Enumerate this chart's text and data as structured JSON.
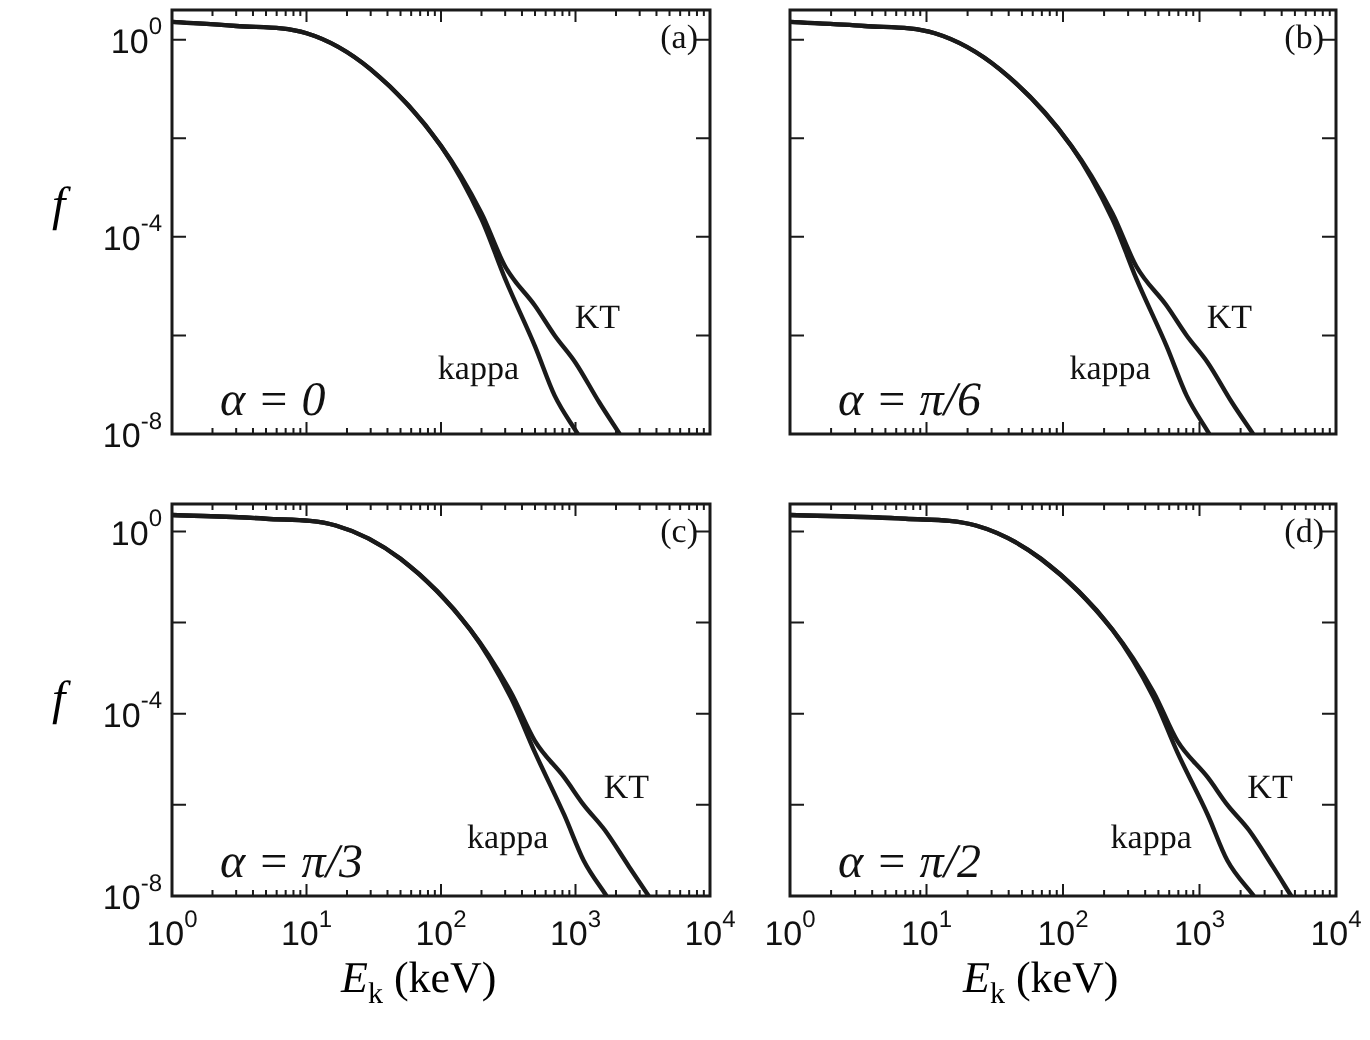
{
  "chart_data": [
    {
      "type": "line",
      "ylabel": "f",
      "annotations": [
        "(a)",
        "α = 0"
      ],
      "log": "xy",
      "xlim": [
        1,
        10000
      ],
      "ylim": [
        1e-08,
        4
      ],
      "tick_labels": "y",
      "xticks": [
        {
          "value": 1,
          "label": null
        },
        {
          "value": 2,
          "label": null
        },
        {
          "value": 3,
          "label": null
        },
        {
          "value": 4,
          "label": null
        },
        {
          "value": 5,
          "label": null
        },
        {
          "value": 6,
          "label": null
        },
        {
          "value": 7,
          "label": null
        },
        {
          "value": 8,
          "label": null
        },
        {
          "value": 9,
          "label": null
        },
        {
          "value": 10,
          "label": null
        },
        {
          "value": 20,
          "label": null
        },
        {
          "value": 30,
          "label": null
        },
        {
          "value": 40,
          "label": null
        },
        {
          "value": 50,
          "label": null
        },
        {
          "value": 60,
          "label": null
        },
        {
          "value": 70,
          "label": null
        },
        {
          "value": 80,
          "label": null
        },
        {
          "value": 90,
          "label": null
        },
        {
          "value": 100,
          "label": null
        },
        {
          "value": 200,
          "label": null
        },
        {
          "value": 300,
          "label": null
        },
        {
          "value": 400,
          "label": null
        },
        {
          "value": 500,
          "label": null
        },
        {
          "value": 600,
          "label": null
        },
        {
          "value": 700,
          "label": null
        },
        {
          "value": 800,
          "label": null
        },
        {
          "value": 900,
          "label": null
        },
        {
          "value": 1000,
          "label": null
        },
        {
          "value": 2000,
          "label": null
        },
        {
          "value": 3000,
          "label": null
        },
        {
          "value": 4000,
          "label": null
        },
        {
          "value": 5000,
          "label": null
        },
        {
          "value": 6000,
          "label": null
        },
        {
          "value": 7000,
          "label": null
        },
        {
          "value": 8000,
          "label": null
        },
        {
          "value": 9000,
          "label": null
        },
        {
          "value": 10000,
          "label": null
        }
      ],
      "yticks": [
        {
          "value": 1,
          "label": "10$^{0}$"
        },
        {
          "value": 0.01,
          "label": null
        },
        {
          "value": 0.0001,
          "label": "10$^{-4}$"
        },
        {
          "value": 1e-06,
          "label": null
        },
        {
          "value": 1e-08,
          "label": "10$^{-8}$"
        }
      ],
      "series": [
        {
          "name": "kappa",
          "color": "#1a1a1a",
          "x": [
            1,
            3,
            10,
            30,
            100,
            200,
            300,
            500,
            700,
            1040
          ],
          "values": [
            2.3,
            1.9,
            1.35,
            0.25,
            0.007,
            0.00023,
            1.4e-05,
            6e-07,
            6e-08,
            1e-08
          ]
        },
        {
          "name": "KT",
          "color": "#1a1a1a",
          "x": [
            1,
            3,
            10,
            30,
            100,
            200,
            300,
            500,
            700,
            1000,
            1500,
            2130
          ],
          "values": [
            2.3,
            1.9,
            1.35,
            0.25,
            0.007,
            0.0003,
            2.5e-05,
            4e-06,
            1e-06,
            2.8e-07,
            4.4e-08,
            1e-08
          ]
        }
      ]
    },
    {
      "type": "line",
      "annotations": [
        "(b)",
        "α = π/6"
      ],
      "log": "xy",
      "xlim": [
        1,
        10000
      ],
      "ylim": [
        1e-08,
        4
      ],
      "tick_labels": false,
      "xticks": [
        {
          "value": 1,
          "label": null
        },
        {
          "value": 2,
          "label": null
        },
        {
          "value": 3,
          "label": null
        },
        {
          "value": 4,
          "label": null
        },
        {
          "value": 5,
          "label": null
        },
        {
          "value": 6,
          "label": null
        },
        {
          "value": 7,
          "label": null
        },
        {
          "value": 8,
          "label": null
        },
        {
          "value": 9,
          "label": null
        },
        {
          "value": 10,
          "label": null
        },
        {
          "value": 20,
          "label": null
        },
        {
          "value": 30,
          "label": null
        },
        {
          "value": 40,
          "label": null
        },
        {
          "value": 50,
          "label": null
        },
        {
          "value": 60,
          "label": null
        },
        {
          "value": 70,
          "label": null
        },
        {
          "value": 80,
          "label": null
        },
        {
          "value": 90,
          "label": null
        },
        {
          "value": 100,
          "label": null
        },
        {
          "value": 200,
          "label": null
        },
        {
          "value": 300,
          "label": null
        },
        {
          "value": 400,
          "label": null
        },
        {
          "value": 500,
          "label": null
        },
        {
          "value": 600,
          "label": null
        },
        {
          "value": 700,
          "label": null
        },
        {
          "value": 800,
          "label": null
        },
        {
          "value": 900,
          "label": null
        },
        {
          "value": 1000,
          "label": null
        },
        {
          "value": 2000,
          "label": null
        },
        {
          "value": 3000,
          "label": null
        },
        {
          "value": 4000,
          "label": null
        },
        {
          "value": 5000,
          "label": null
        },
        {
          "value": 6000,
          "label": null
        },
        {
          "value": 7000,
          "label": null
        },
        {
          "value": 8000,
          "label": null
        },
        {
          "value": 9000,
          "label": null
        },
        {
          "value": 10000,
          "label": null
        }
      ],
      "yticks": [
        {
          "value": 1,
          "label": null
        },
        {
          "value": 0.01,
          "label": null
        },
        {
          "value": 0.0001,
          "label": null
        },
        {
          "value": 1e-06,
          "label": null
        },
        {
          "value": 1e-08,
          "label": null
        }
      ],
      "series": [
        {
          "name": "kappa",
          "color": "#1a1a1a",
          "x": [
            1,
            3.5,
            11.5,
            34.5,
            115,
            230,
            345,
            575,
            805,
            1180
          ],
          "values": [
            2.3,
            1.9,
            1.35,
            0.25,
            0.007,
            0.00023,
            1.4e-05,
            6e-07,
            6e-08,
            1e-08
          ]
        },
        {
          "name": "KT",
          "color": "#1a1a1a",
          "x": [
            1,
            3.5,
            11.5,
            34.5,
            115,
            230,
            345,
            575,
            805,
            1150,
            1725,
            2470
          ],
          "values": [
            2.3,
            1.9,
            1.35,
            0.25,
            0.007,
            0.0003,
            2.5e-05,
            4e-06,
            1e-06,
            2.8e-07,
            4.4e-08,
            1e-08
          ]
        }
      ]
    },
    {
      "type": "line",
      "ylabel": "f",
      "xlabel": "E$_{k}$ (keV)",
      "annotations": [
        "(c)",
        "α = π/3"
      ],
      "log": "xy",
      "xlim": [
        1,
        10000
      ],
      "ylim": [
        1e-08,
        4
      ],
      "xticks": [
        {
          "value": 1,
          "label": "10$^{0}$"
        },
        {
          "value": 2,
          "label": null
        },
        {
          "value": 3,
          "label": null
        },
        {
          "value": 4,
          "label": null
        },
        {
          "value": 5,
          "label": null
        },
        {
          "value": 6,
          "label": null
        },
        {
          "value": 7,
          "label": null
        },
        {
          "value": 8,
          "label": null
        },
        {
          "value": 9,
          "label": null
        },
        {
          "value": 10,
          "label": "10$^{1}$"
        },
        {
          "value": 20,
          "label": null
        },
        {
          "value": 30,
          "label": null
        },
        {
          "value": 40,
          "label": null
        },
        {
          "value": 50,
          "label": null
        },
        {
          "value": 60,
          "label": null
        },
        {
          "value": 70,
          "label": null
        },
        {
          "value": 80,
          "label": null
        },
        {
          "value": 90,
          "label": null
        },
        {
          "value": 100,
          "label": "10$^{2}$"
        },
        {
          "value": 200,
          "label": null
        },
        {
          "value": 300,
          "label": null
        },
        {
          "value": 400,
          "label": null
        },
        {
          "value": 500,
          "label": null
        },
        {
          "value": 600,
          "label": null
        },
        {
          "value": 700,
          "label": null
        },
        {
          "value": 800,
          "label": null
        },
        {
          "value": 900,
          "label": null
        },
        {
          "value": 1000,
          "label": "10$^{3}$"
        },
        {
          "value": 2000,
          "label": null
        },
        {
          "value": 3000,
          "label": null
        },
        {
          "value": 4000,
          "label": null
        },
        {
          "value": 5000,
          "label": null
        },
        {
          "value": 6000,
          "label": null
        },
        {
          "value": 7000,
          "label": null
        },
        {
          "value": 8000,
          "label": null
        },
        {
          "value": 9000,
          "label": null
        },
        {
          "value": 10000,
          "label": "10$^{4}$"
        }
      ],
      "yticks": [
        {
          "value": 1,
          "label": "10$^{0}$"
        },
        {
          "value": 0.01,
          "label": null
        },
        {
          "value": 0.0001,
          "label": "10$^{-4}$"
        },
        {
          "value": 1e-06,
          "label": null
        },
        {
          "value": 1e-08,
          "label": "10$^{-8}$"
        }
      ],
      "series": [
        {
          "name": "kappa",
          "color": "#1a1a1a",
          "x": [
            1,
            5,
            16.5,
            50,
            165,
            330,
            500,
            825,
            1150,
            1700
          ],
          "values": [
            2.3,
            1.9,
            1.35,
            0.25,
            0.007,
            0.00023,
            1.4e-05,
            6e-07,
            6e-08,
            1e-08
          ]
        },
        {
          "name": "KT",
          "color": "#1a1a1a",
          "x": [
            1,
            5,
            16.5,
            50,
            165,
            330,
            500,
            825,
            1150,
            1650,
            2500,
            3500
          ],
          "values": [
            2.3,
            1.9,
            1.35,
            0.25,
            0.007,
            0.0003,
            2.5e-05,
            4e-06,
            1e-06,
            2.8e-07,
            4.4e-08,
            1e-08
          ]
        }
      ]
    },
    {
      "type": "line",
      "xlabel": "E$_{k}$ (keV)",
      "annotations": [
        "(d)",
        "α = π/2"
      ],
      "log": "xy",
      "xlim": [
        1,
        10000
      ],
      "ylim": [
        1e-08,
        4
      ],
      "tick_labels": "x",
      "xticks": [
        {
          "value": 1,
          "label": "10$^{0}$"
        },
        {
          "value": 2,
          "label": null
        },
        {
          "value": 3,
          "label": null
        },
        {
          "value": 4,
          "label": null
        },
        {
          "value": 5,
          "label": null
        },
        {
          "value": 6,
          "label": null
        },
        {
          "value": 7,
          "label": null
        },
        {
          "value": 8,
          "label": null
        },
        {
          "value": 9,
          "label": null
        },
        {
          "value": 10,
          "label": "10$^{1}$"
        },
        {
          "value": 20,
          "label": null
        },
        {
          "value": 30,
          "label": null
        },
        {
          "value": 40,
          "label": null
        },
        {
          "value": 50,
          "label": null
        },
        {
          "value": 60,
          "label": null
        },
        {
          "value": 70,
          "label": null
        },
        {
          "value": 80,
          "label": null
        },
        {
          "value": 90,
          "label": null
        },
        {
          "value": 100,
          "label": "10$^{2}$"
        },
        {
          "value": 200,
          "label": null
        },
        {
          "value": 300,
          "label": null
        },
        {
          "value": 400,
          "label": null
        },
        {
          "value": 500,
          "label": null
        },
        {
          "value": 600,
          "label": null
        },
        {
          "value": 700,
          "label": null
        },
        {
          "value": 800,
          "label": null
        },
        {
          "value": 900,
          "label": null
        },
        {
          "value": 1000,
          "label": "10$^{3}$"
        },
        {
          "value": 2000,
          "label": null
        },
        {
          "value": 3000,
          "label": null
        },
        {
          "value": 4000,
          "label": null
        },
        {
          "value": 5000,
          "label": null
        },
        {
          "value": 6000,
          "label": null
        },
        {
          "value": 7000,
          "label": null
        },
        {
          "value": 8000,
          "label": null
        },
        {
          "value": 9000,
          "label": null
        },
        {
          "value": 10000,
          "label": "10$^{4}$"
        }
      ],
      "yticks": [
        {
          "value": 1,
          "label": null
        },
        {
          "value": 0.01,
          "label": null
        },
        {
          "value": 0.0001,
          "label": null
        },
        {
          "value": 1e-06,
          "label": null
        },
        {
          "value": 1e-08,
          "label": null
        }
      ],
      "series": [
        {
          "name": "kappa",
          "color": "#1a1a1a",
          "x": [
            1,
            7,
            23,
            69,
            230,
            460,
            690,
            1150,
            1600,
            2500
          ],
          "values": [
            2.3,
            1.9,
            1.35,
            0.25,
            0.007,
            0.00023,
            1.4e-05,
            6e-07,
            6e-08,
            1e-08
          ]
        },
        {
          "name": "KT",
          "color": "#1a1a1a",
          "x": [
            1,
            7,
            23,
            69,
            230,
            460,
            690,
            1150,
            1600,
            2300,
            3450,
            4700
          ],
          "values": [
            2.3,
            1.9,
            1.35,
            0.25,
            0.007,
            0.0003,
            2.5e-05,
            4e-06,
            1e-06,
            2.8e-07,
            4.4e-08,
            1e-08
          ]
        }
      ]
    }
  ]
}
